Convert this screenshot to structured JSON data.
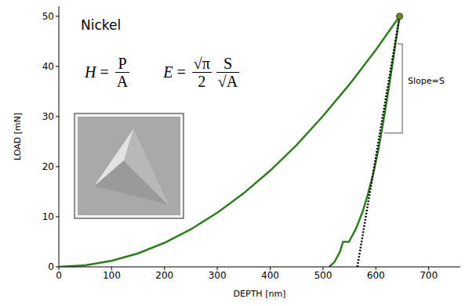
{
  "chart_data": {
    "type": "line",
    "title": "Nickel",
    "x_label": "DEPTH [nm]",
    "y_label": "LOAD [mN]",
    "xlim": [
      0,
      760
    ],
    "xticks": [
      0,
      100,
      200,
      300,
      400,
      500,
      600,
      700
    ],
    "ylim": [
      0,
      52
    ],
    "yticks": [
      0,
      10,
      20,
      30,
      40,
      50
    ],
    "grid": false,
    "series": [
      {
        "color": "#2e7d1f",
        "line_style": "solid",
        "marker": "none",
        "x": [
          0,
          50,
          100,
          150,
          200,
          250,
          300,
          350,
          400,
          450,
          500,
          550,
          600,
          645
        ],
        "values": [
          0,
          0.3,
          1.2,
          2.7,
          4.8,
          7.5,
          10.8,
          14.7,
          19.2,
          24.3,
          30.1,
          36.4,
          43.3,
          50
        ]
      },
      {
        "color": "#2e7d1f",
        "line_style": "solid",
        "marker": "none",
        "x": [
          645,
          635,
          625,
          615,
          605,
          595,
          585,
          575,
          562,
          549,
          538,
          532,
          522,
          512
        ],
        "values": [
          50,
          43,
          36,
          29.5,
          23.5,
          18.5,
          14.5,
          11,
          7.5,
          5,
          5,
          3,
          1,
          0
        ]
      },
      {
        "color": "#000000",
        "line_style": "dotted",
        "marker": "none",
        "x": [
          565,
          645
        ],
        "values": [
          0,
          50
        ]
      },
      {
        "type": "scatter",
        "color": "#6b8e23",
        "marker": "circle",
        "x": [
          645
        ],
        "values": [
          50
        ]
      }
    ],
    "annotations": {
      "formulas": [
        {
          "lhs": "H",
          "fractions": [
            {
              "num": "P",
              "den": "A"
            }
          ]
        },
        {
          "lhs": "E",
          "fractions": [
            {
              "num": "√π",
              "den": "2"
            },
            {
              "num": "S",
              "den": "√A"
            }
          ]
        }
      ],
      "slope_label": "Slope=S"
    }
  }
}
